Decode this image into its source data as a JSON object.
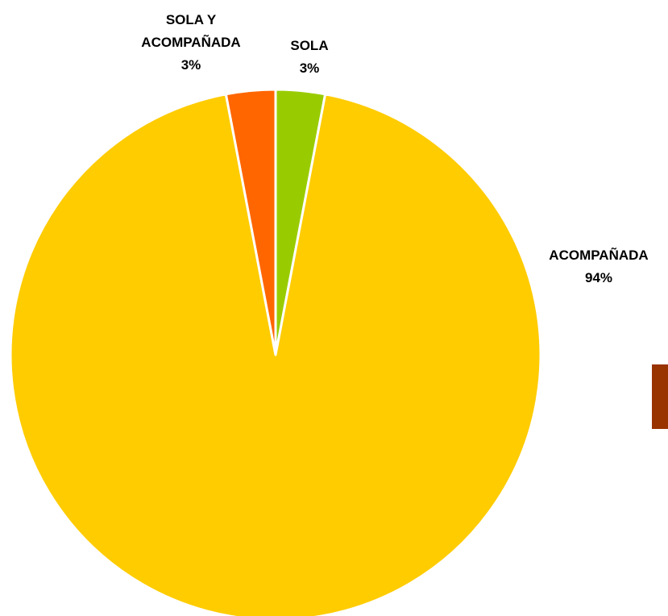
{
  "chart_data": {
    "type": "pie",
    "title": "",
    "slices": [
      {
        "label_lines": [
          "SOLA"
        ],
        "value": 3,
        "value_label": "3%",
        "color": "#99CC00"
      },
      {
        "label_lines": [
          "ACOMPAÑADA"
        ],
        "value": 94,
        "value_label": "94%",
        "color": "#FFCC00"
      },
      {
        "label_lines": [
          "SOLA Y",
          "ACOMPAÑADA"
        ],
        "value": 3,
        "value_label": "3%",
        "color": "#FF6600"
      }
    ],
    "start_angle_deg": 0,
    "direction": "clockwise",
    "legend_marker_color": "#993300",
    "slice_border_color": "#FFFFFF"
  }
}
